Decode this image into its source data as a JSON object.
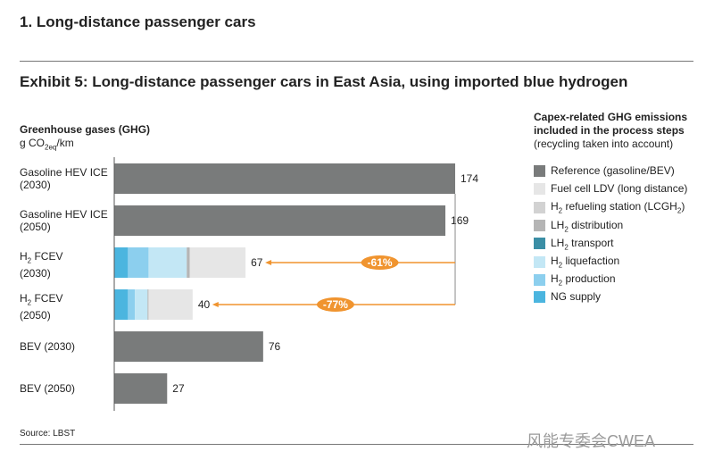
{
  "section_title": "1. Long-distance passenger cars",
  "exhibit_title": "Exhibit 5: Long-distance passenger cars in East Asia, using imported blue hydrogen",
  "source": "Source: LBST",
  "watermark": "风能专委会CWEA",
  "chart_data": {
    "type": "bar",
    "orientation": "horizontal",
    "stacked": true,
    "ylabel": "Greenhouse gases (GHG)",
    "unit_prefix": "g CO",
    "unit_sub": "2eq",
    "unit_suffix": "/km",
    "xlim": [
      0,
      174
    ],
    "categories": [
      {
        "line1": "Gasoline HEV ICE",
        "line2": "(2030)",
        "h2": false
      },
      {
        "line1": "Gasoline HEV ICE",
        "line2": "(2050)",
        "h2": false
      },
      {
        "line1": " FCEV",
        "line2": "(2030)",
        "h2": true
      },
      {
        "line1": " FCEV",
        "line2": "(2050)",
        "h2": true
      },
      {
        "line1": "BEV (2030)",
        "line2": "",
        "h2": false
      },
      {
        "line1": "BEV (2050)",
        "line2": "",
        "h2": false
      }
    ],
    "totals": [
      174,
      169,
      67,
      40,
      76,
      27
    ],
    "series": [
      {
        "name": "NG supply",
        "color": "#4bb5df",
        "values": [
          0,
          0,
          7,
          7,
          0,
          0
        ]
      },
      {
        "name": "H2 production",
        "color": "#8ccfee",
        "values": [
          0,
          0,
          10.5,
          3.5,
          0,
          0
        ]
      },
      {
        "name": "H2 liquefaction",
        "color": "#c3e7f5",
        "values": [
          0,
          0,
          19.5,
          6.5,
          0,
          0
        ]
      },
      {
        "name": "LH2 transport",
        "color": "#3b8ea5",
        "values": [
          0,
          0,
          0,
          0,
          0,
          0
        ]
      },
      {
        "name": "LH2 distribution",
        "color": "#b5b5b5",
        "values": [
          0,
          0,
          1.5,
          0.5,
          0,
          0
        ]
      },
      {
        "name": "H2 refueling station (LCGH2)",
        "color": "#d2d2d2",
        "values": [
          0,
          0,
          0,
          0,
          0,
          0
        ]
      },
      {
        "name": "Fuel cell LDV (long distance)",
        "color": "#e6e6e6",
        "values": [
          0,
          0,
          28.5,
          22.5,
          0,
          0
        ]
      },
      {
        "name": "Reference (gasoline/BEV)",
        "color": "#797b7b",
        "values": [
          174,
          169,
          0,
          0,
          76,
          27
        ]
      }
    ],
    "annotations": [
      {
        "from": "Gasoline HEV ICE (2030)",
        "to": "H2 FCEV (2030)",
        "label": "-61%"
      },
      {
        "from": "Gasoline HEV ICE (2030)",
        "to": "H2 FCEV (2050)",
        "label": "-77%"
      }
    ],
    "annotation_color": "#f0942f",
    "legend": {
      "title": "Capex-related GHG emissions included in the process steps",
      "subtitle": "(recycling taken into account)",
      "placement": "right",
      "items": [
        {
          "pre": "Reference (gasoline/BEV)",
          "sub": "",
          "post": "",
          "color": "#797b7b"
        },
        {
          "pre": "Fuel cell LDV (long distance)",
          "sub": "",
          "post": "",
          "color": "#e6e6e6"
        },
        {
          "pre": "H",
          "sub": "2",
          "post": " refueling station (LCGH",
          "sub2": "2",
          "post2": ")",
          "color": "#d2d2d2"
        },
        {
          "pre": "LH",
          "sub": "2",
          "post": " distribution",
          "color": "#b5b5b5"
        },
        {
          "pre": "LH",
          "sub": "2",
          "post": " transport",
          "color": "#3b8ea5"
        },
        {
          "pre": "H",
          "sub": "2",
          "post": " liquefaction",
          "color": "#c3e7f5"
        },
        {
          "pre": "H",
          "sub": "2",
          "post": " production",
          "color": "#8ccfee"
        },
        {
          "pre": "NG supply",
          "sub": "",
          "post": "",
          "color": "#4bb5df"
        }
      ]
    }
  }
}
